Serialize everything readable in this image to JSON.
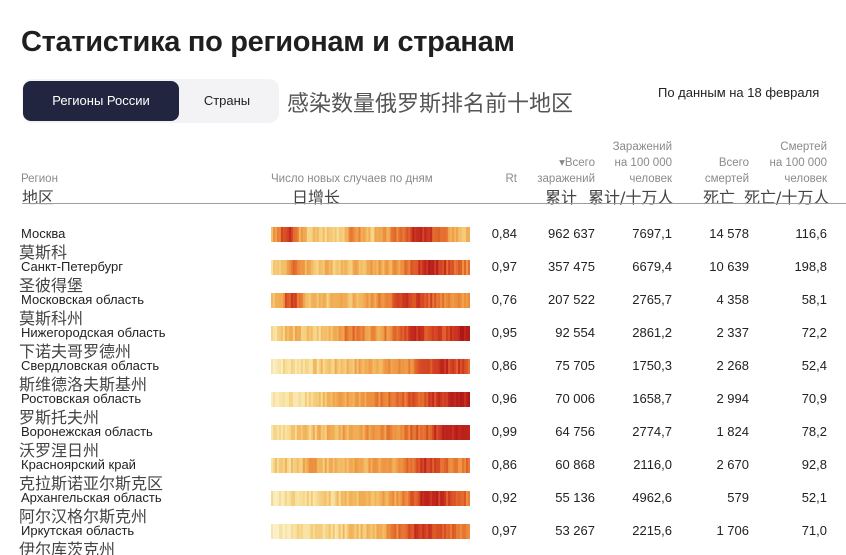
{
  "header": {
    "title": "Статистика по регионам и странам",
    "subtitle_cn": "感染数量俄罗斯排名前十地区",
    "data_date": "По данным на 18 февраля"
  },
  "tabs": [
    {
      "label": "Регионы России",
      "active": true
    },
    {
      "label": "Страны",
      "active": false
    }
  ],
  "columns": {
    "region": "Регион",
    "region_cn": "地区",
    "daily": "Число новых случаев по дням",
    "daily_cn": "日增长",
    "rt": "Rt",
    "total_line1": "▾Всего",
    "total_line2": "заражений",
    "total_cn": "累计",
    "per100k_line1": "Заражений",
    "per100k_line2": "на 100 000",
    "per100k_line3": "человек",
    "per100k_cn": "累计/十万人",
    "deaths_line1": "Всего",
    "deaths_line2": "смертей",
    "deaths_cn": "死亡",
    "deaths100k_line1": "Смертей",
    "deaths100k_line2": "на 100 000",
    "deaths100k_line3": "человек",
    "deaths100k_cn": "死亡/十万人"
  },
  "colors": {
    "tab_active_bg": "#212540",
    "heat_low": "#f6e0a0",
    "heat_mid": "#ee9a45",
    "heat_high": "#b81e1e"
  },
  "rows": [
    {
      "name": "Москва",
      "name_cn": "莫斯科",
      "rt": "0,84",
      "total": "962 637",
      "per100k": "7697,1",
      "deaths": "14 578",
      "deaths100k": "116,6"
    },
    {
      "name": "Санкт-Петербург",
      "name_cn": "圣彼得堡",
      "rt": "0,97",
      "total": "357 475",
      "per100k": "6679,4",
      "deaths": "10 639",
      "deaths100k": "198,8"
    },
    {
      "name": "Московская область",
      "name_cn": "莫斯科州",
      "rt": "0,76",
      "total": "207 522",
      "per100k": "2765,7",
      "deaths": "4 358",
      "deaths100k": "58,1"
    },
    {
      "name": "Нижегородская область",
      "name_cn": "下诺夫哥罗德州",
      "rt": "0,95",
      "total": "92 554",
      "per100k": "2861,2",
      "deaths": "2 337",
      "deaths100k": "72,2"
    },
    {
      "name": "Свердловская область",
      "name_cn": "斯维德洛夫斯基州",
      "rt": "0,86",
      "total": "75 705",
      "per100k": "1750,3",
      "deaths": "2 268",
      "deaths100k": "52,4"
    },
    {
      "name": "Ростовская область",
      "name_cn": "罗斯托夫州",
      "rt": "0,96",
      "total": "70 006",
      "per100k": "1658,7",
      "deaths": "2 994",
      "deaths100k": "70,9"
    },
    {
      "name": "Воронежская область",
      "name_cn": "沃罗涅日州",
      "rt": "0,99",
      "total": "64 756",
      "per100k": "2774,7",
      "deaths": "1 824",
      "deaths100k": "78,2"
    },
    {
      "name": "Красноярский край",
      "name_cn": "克拉斯诺亚尔斯克区",
      "rt": "0,86",
      "total": "60 868",
      "per100k": "2116,0",
      "deaths": "2 670",
      "deaths100k": "92,8"
    },
    {
      "name": "Архангельская область",
      "name_cn": "阿尔汉格尔斯克州",
      "rt": "0,92",
      "total": "55 136",
      "per100k": "4962,6",
      "deaths": "579",
      "deaths100k": "52,1"
    },
    {
      "name": "Иркутская область",
      "name_cn": "伊尔库茨克州",
      "rt": "0,97",
      "total": "53 267",
      "per100k": "2215,6",
      "deaths": "1 706",
      "deaths100k": "71,0"
    }
  ]
}
